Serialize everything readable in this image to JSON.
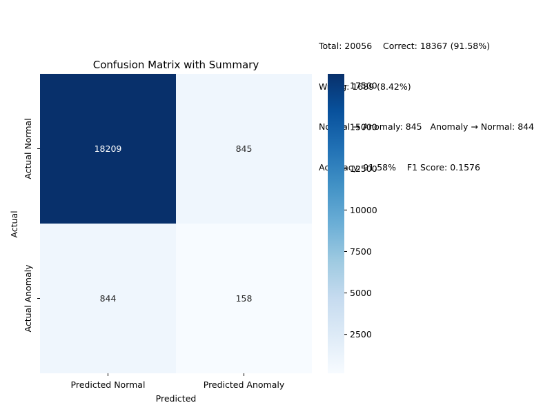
{
  "summary_lines": [
    "Total: 20056    Correct: 18367 (91.58%)",
    "Wrong: 1689 (8.42%)",
    "Normal → Anomaly: 845   Anomaly → Normal: 844",
    "Accuracy: 91.58%    F1 Score: 0.1576"
  ],
  "chart_data": {
    "type": "heatmap",
    "title": "Confusion Matrix with Summary",
    "xlabel": "Predicted",
    "ylabel": "Actual",
    "x_categories": [
      "Predicted Normal",
      "Predicted Anomaly"
    ],
    "y_categories": [
      "Actual Normal",
      "Actual Anomaly"
    ],
    "values": [
      [
        18209,
        845
      ],
      [
        844,
        158
      ]
    ],
    "colormap": "Blues",
    "color_range": [
      158,
      18209
    ],
    "colorbar_ticks": [
      2500,
      5000,
      7500,
      10000,
      12500,
      15000,
      17500
    ]
  }
}
